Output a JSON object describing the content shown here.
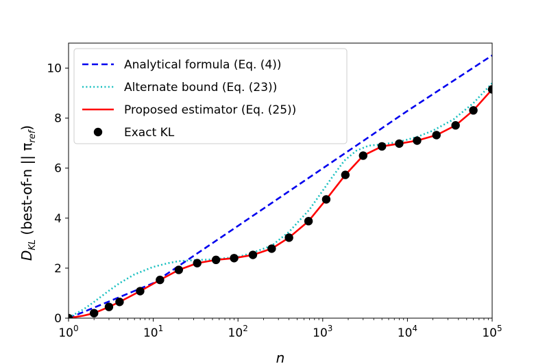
{
  "chart_data": {
    "type": "line",
    "xlabel": "n",
    "ylabel_main": "D",
    "ylabel_sub": "KL",
    "ylabel_rest": " (best-of-n || π",
    "ylabel_sub2": "ref",
    "ylabel_end": ")",
    "xscale": "log",
    "xlim": [
      1,
      100000
    ],
    "ylim": [
      0,
      11
    ],
    "grid": false,
    "legend_position": "top-left",
    "x_ticks": [
      {
        "base": "10",
        "exp": "0",
        "value": 1
      },
      {
        "base": "10",
        "exp": "1",
        "value": 10
      },
      {
        "base": "10",
        "exp": "2",
        "value": 100
      },
      {
        "base": "10",
        "exp": "3",
        "value": 1000
      },
      {
        "base": "10",
        "exp": "4",
        "value": 10000
      },
      {
        "base": "10",
        "exp": "5",
        "value": 100000
      }
    ],
    "y_ticks": [
      "0",
      "2",
      "4",
      "6",
      "8",
      "10"
    ],
    "series": [
      {
        "name": "Analytical formula (Eq. (4))",
        "style": "dashed",
        "color": "#0000ee",
        "x": [
          1,
          10,
          100,
          1000,
          10000,
          100000
        ],
        "y": [
          0,
          1.4,
          3.69,
          5.99,
          8.29,
          10.51
        ]
      },
      {
        "name": "Alternate bound (Eq. (23))",
        "style": "dotted",
        "color": "#17bfbf",
        "x": [
          1,
          1.5,
          2,
          3,
          4,
          6,
          10,
          15,
          20,
          30,
          50,
          100,
          150,
          250,
          400,
          700,
          1000,
          1300,
          1800,
          2500,
          3500,
          5000,
          8000,
          13000,
          20000,
          35000,
          60000,
          100000
        ],
        "y": [
          0.02,
          0.35,
          0.65,
          1.1,
          1.4,
          1.75,
          2.05,
          2.2,
          2.28,
          2.32,
          2.35,
          2.45,
          2.62,
          2.9,
          3.45,
          4.35,
          5.1,
          5.65,
          6.3,
          6.7,
          6.9,
          6.95,
          7.05,
          7.25,
          7.5,
          7.95,
          8.6,
          9.4
        ]
      },
      {
        "name": "Proposed estimator (Eq. (25))",
        "style": "solid",
        "color": "#ff0000",
        "x": [
          1,
          1.5,
          2,
          3,
          4,
          7,
          12,
          20,
          33,
          55,
          90,
          150,
          250,
          400,
          680,
          1100,
          1850,
          3000,
          5000,
          8000,
          13000,
          22000,
          37000,
          60000,
          100000
        ],
        "y": [
          0,
          0.1,
          0.2,
          0.45,
          0.65,
          1.08,
          1.53,
          1.93,
          2.2,
          2.33,
          2.4,
          2.53,
          2.78,
          3.22,
          3.88,
          4.75,
          5.73,
          6.5,
          6.87,
          6.98,
          7.1,
          7.32,
          7.71,
          8.31,
          9.15
        ]
      },
      {
        "name": "Exact KL",
        "style": "markers",
        "color": "#000000",
        "x": [
          1,
          2,
          3,
          4,
          7,
          12,
          20,
          33,
          55,
          90,
          150,
          250,
          400,
          680,
          1100,
          1850,
          3000,
          5000,
          8000,
          13000,
          22000,
          37000,
          60000,
          100000
        ],
        "y": [
          0,
          0.2,
          0.45,
          0.65,
          1.08,
          1.53,
          1.93,
          2.2,
          2.33,
          2.4,
          2.53,
          2.78,
          3.22,
          3.88,
          4.75,
          5.73,
          6.5,
          6.87,
          6.98,
          7.1,
          7.32,
          7.71,
          8.31,
          9.15
        ]
      }
    ]
  }
}
